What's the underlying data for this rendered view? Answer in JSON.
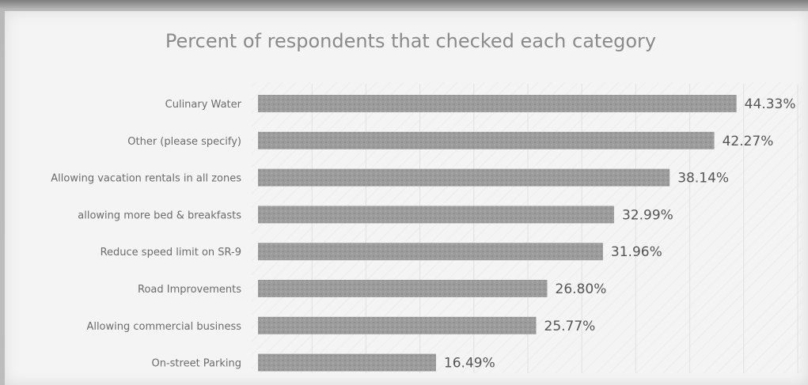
{
  "chart_data": {
    "type": "bar",
    "orientation": "horizontal",
    "title": "Percent of respondents that checked each category",
    "categories": [
      "Culinary Water",
      "Other (please specify)",
      "Allowing vacation rentals in all zones",
      "allowing more bed & breakfasts",
      "Reduce speed limit on SR-9",
      "Road Improvements",
      "Allowing commercial business",
      "On-street Parking"
    ],
    "values": [
      44.33,
      42.27,
      38.14,
      32.99,
      31.96,
      26.8,
      25.77,
      16.49
    ],
    "value_labels": [
      "44.33%",
      "42.27%",
      "38.14%",
      "32.99%",
      "31.96%",
      "26.80%",
      "25.77%",
      "16.49%"
    ],
    "xlim": [
      0,
      50
    ],
    "grid": true,
    "colors": {
      "bar": "#9c9c9c",
      "grid": "#e1e1e1",
      "title": "#8a8a8a"
    }
  }
}
